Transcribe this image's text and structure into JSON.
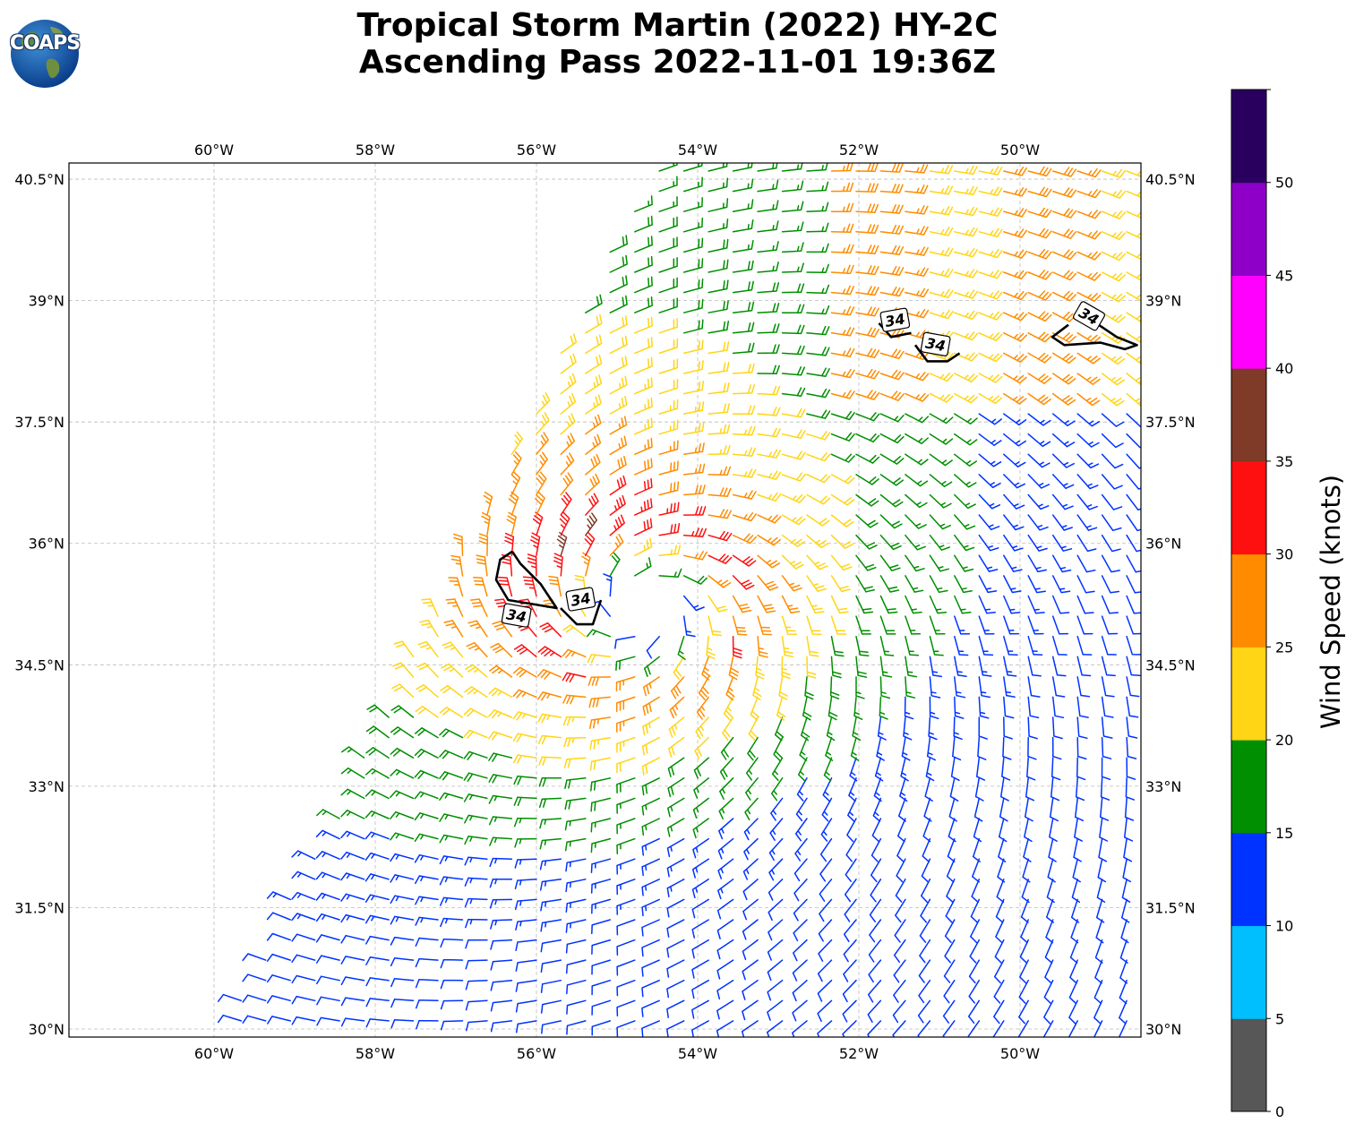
{
  "title": {
    "line1": "Tropical Storm Martin (2022) HY-2C",
    "line2": "Ascending Pass 2022-11-01 19:36Z"
  },
  "logo": {
    "text": "COAPS",
    "icon": "globe-icon"
  },
  "map": {
    "lon_range": [
      -61.8,
      -48.5
    ],
    "lat_range": [
      29.9,
      40.7
    ],
    "lon_ticks": [
      {
        "value": -60,
        "label": "60°W"
      },
      {
        "value": -58,
        "label": "58°W"
      },
      {
        "value": -56,
        "label": "56°W"
      },
      {
        "value": -54,
        "label": "54°W"
      },
      {
        "value": -52,
        "label": "52°W"
      },
      {
        "value": -50,
        "label": "50°W"
      }
    ],
    "lat_ticks": [
      {
        "value": 40.5,
        "label": "40.5°N"
      },
      {
        "value": 39,
        "label": "39°N"
      },
      {
        "value": 37.5,
        "label": "37.5°N"
      },
      {
        "value": 36,
        "label": "36°N"
      },
      {
        "value": 34.5,
        "label": "34.5°N"
      },
      {
        "value": 33,
        "label": "33°N"
      },
      {
        "value": 31.5,
        "label": "31.5°N"
      },
      {
        "value": 30,
        "label": "30°N"
      }
    ],
    "gridlines": true,
    "storm_center": {
      "lon": -54.7,
      "lat": 35.2
    },
    "swath_west_edge": [
      [
        -59.8,
        30.1
      ],
      [
        -54.6,
        40.6
      ]
    ],
    "contour_value": 34,
    "contour_label": "34",
    "contour_labels": [
      {
        "lon": -56.25,
        "lat": 35.1,
        "angle": 10
      },
      {
        "lon": -55.45,
        "lat": 35.3,
        "angle": -10
      },
      {
        "lon": -51.55,
        "lat": 38.75,
        "angle": -10
      },
      {
        "lon": -51.05,
        "lat": 38.45,
        "angle": 10
      },
      {
        "lon": -49.15,
        "lat": 38.8,
        "angle": 30
      }
    ],
    "contours": [
      [
        [
          -56.3,
          35.9
        ],
        [
          -56.45,
          35.8
        ],
        [
          -56.5,
          35.55
        ],
        [
          -56.35,
          35.3
        ],
        [
          -56.05,
          35.25
        ],
        [
          -55.75,
          35.2
        ],
        [
          -55.95,
          35.5
        ],
        [
          -56.2,
          35.75
        ],
        [
          -56.3,
          35.9
        ]
      ],
      [
        [
          -55.7,
          35.2
        ],
        [
          -55.5,
          35.0
        ],
        [
          -55.3,
          35.0
        ],
        [
          -55.2,
          35.3
        ]
      ],
      [
        [
          -51.75,
          38.72
        ],
        [
          -51.6,
          38.55
        ],
        [
          -51.35,
          38.6
        ]
      ],
      [
        [
          -51.3,
          38.45
        ],
        [
          -51.15,
          38.25
        ],
        [
          -50.9,
          38.25
        ],
        [
          -50.75,
          38.35
        ]
      ],
      [
        [
          -49.4,
          38.7
        ],
        [
          -49.6,
          38.55
        ],
        [
          -49.45,
          38.45
        ],
        [
          -49.0,
          38.48
        ],
        [
          -48.7,
          38.4
        ],
        [
          -48.55,
          38.45
        ],
        [
          -48.8,
          38.55
        ],
        [
          -49.1,
          38.75
        ]
      ]
    ],
    "wind_field": {
      "units": "knots",
      "max_speed_radius_deg": 1.0,
      "max_speed_kt": 33,
      "background_speed_kt": 15,
      "spacing_deg": 0.25
    }
  },
  "colorbar": {
    "title": "Wind Speed (knots)",
    "bins": [
      {
        "from": 0,
        "to": 5,
        "color": "#575757"
      },
      {
        "from": 5,
        "to": 10,
        "color": "#00bfff"
      },
      {
        "from": 10,
        "to": 15,
        "color": "#0033ff"
      },
      {
        "from": 15,
        "to": 20,
        "color": "#008f00"
      },
      {
        "from": 20,
        "to": 25,
        "color": "#ffd515"
      },
      {
        "from": 25,
        "to": 30,
        "color": "#ff8c00"
      },
      {
        "from": 30,
        "to": 35,
        "color": "#ff1010"
      },
      {
        "from": 35,
        "to": 40,
        "color": "#7f3a28"
      },
      {
        "from": 40,
        "to": 45,
        "color": "#ff00ff"
      },
      {
        "from": 45,
        "to": 50,
        "color": "#8e00c8"
      },
      {
        "from": 50,
        "to": 55,
        "color": "#2a005f"
      }
    ],
    "tick_labels": [
      "0",
      "5",
      "10",
      "15",
      "20",
      "25",
      "30",
      "35",
      "40",
      "45",
      "50"
    ]
  }
}
